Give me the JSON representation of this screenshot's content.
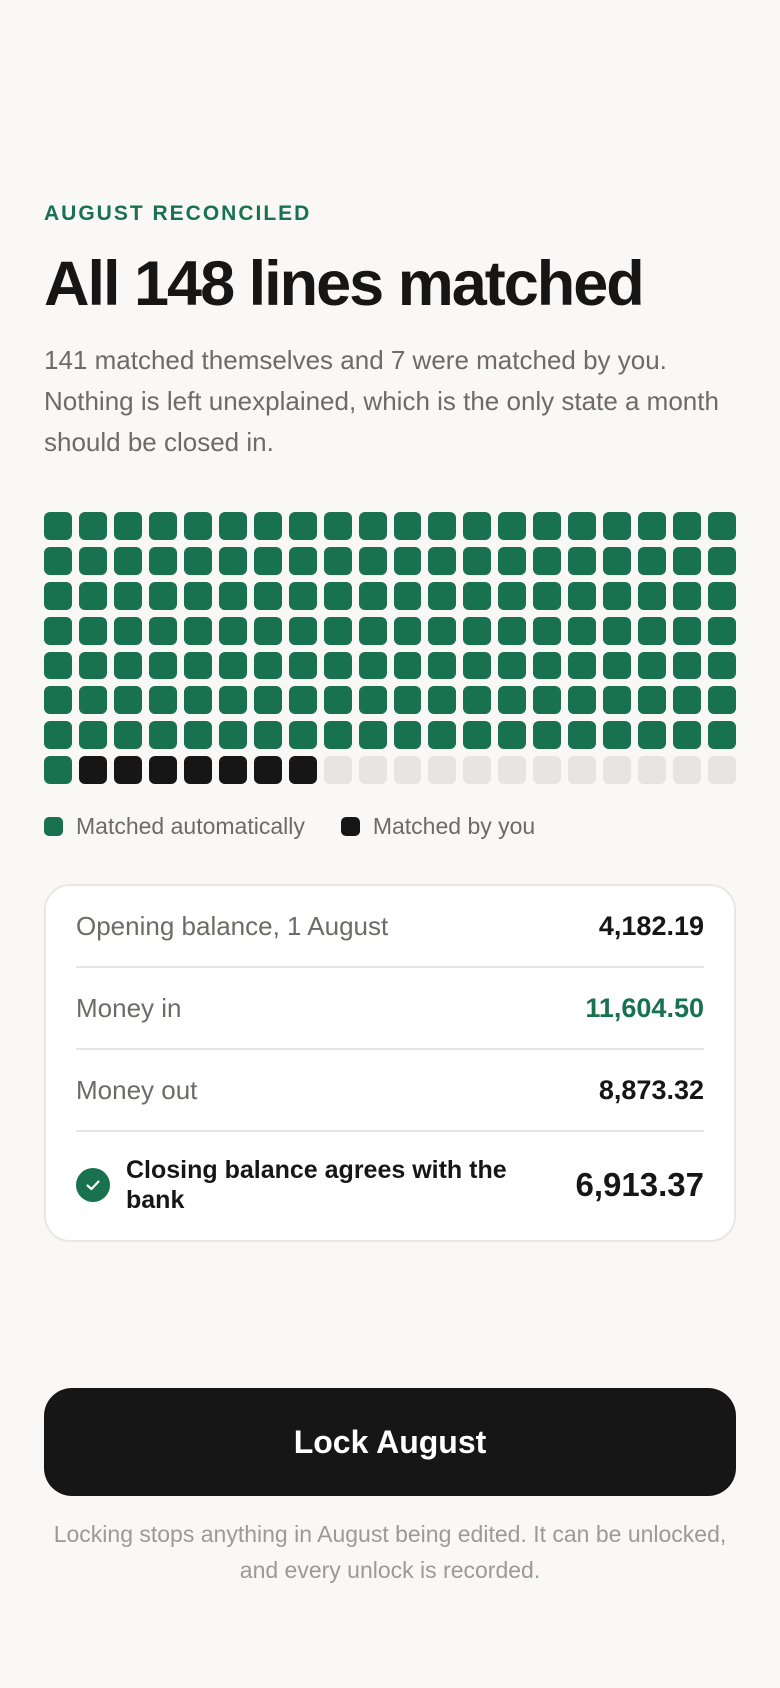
{
  "eyebrow": "AUGUST RECONCILED",
  "headline": "All 148 lines matched",
  "subtitle": "141 matched themselves and 7 were matched by you. Nothing is left unexplained, which is the only state a month should be closed in.",
  "match_grid": {
    "total_cells": 160,
    "matched_automatically": 141,
    "matched_by_you": 7,
    "unused": 12
  },
  "legend": {
    "auto_label": "Matched automatically",
    "you_label": "Matched by you"
  },
  "summary": {
    "opening_label": "Opening balance, 1 August",
    "opening_value": "4,182.19",
    "money_in_label": "Money in",
    "money_in_value": "11,604.50",
    "money_out_label": "Money out",
    "money_out_value": "8,873.32",
    "closing_label": "Closing balance agrees with the bank",
    "closing_value": "6,913.37"
  },
  "action": {
    "lock_label": "Lock August",
    "footnote": "Locking stops anything in August being edited. It can be unlocked, and every unlock is recorded."
  },
  "colors": {
    "accent": "#18714f",
    "dark": "#161616",
    "empty": "#e6e5e2",
    "background": "#f9f8f6"
  }
}
